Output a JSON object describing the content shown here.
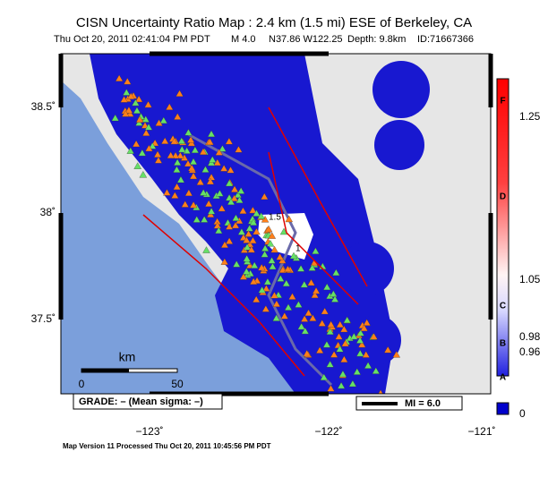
{
  "header": {
    "title": "CISN Uncertainty Ratio Map : 2.4 km (1.5 mi) ESE of Berkeley, CA",
    "subtitle": [
      "Thu Oct 20, 2011 02:41:04 PM PDT",
      "M 4.0",
      "N37.86 W122.25",
      "Depth: 9.8km",
      "ID:71667366"
    ]
  },
  "axes": {
    "lat_labels": [
      "38.5˚",
      "38˚",
      "37.5˚"
    ],
    "lon_labels": [
      "−123˚",
      "−122˚",
      "−121˚"
    ]
  },
  "map": {
    "contour_labels": [
      "1.5",
      "1"
    ],
    "scale_bar": {
      "unit": "km",
      "labels": [
        "0",
        "50"
      ]
    },
    "grade": "GRADE: – (Mean sigma: –)",
    "mi_box": "MI = 6.0"
  },
  "colorbar": {
    "grades": [
      "F",
      "D",
      "C",
      "B",
      "A"
    ],
    "labels": [
      "1.25",
      "1.05",
      "0.98",
      "0.96",
      "0"
    ]
  },
  "footer": "Map Version 11 Processed Thu Oct 20, 2011 10:45:56 PM PDT"
}
